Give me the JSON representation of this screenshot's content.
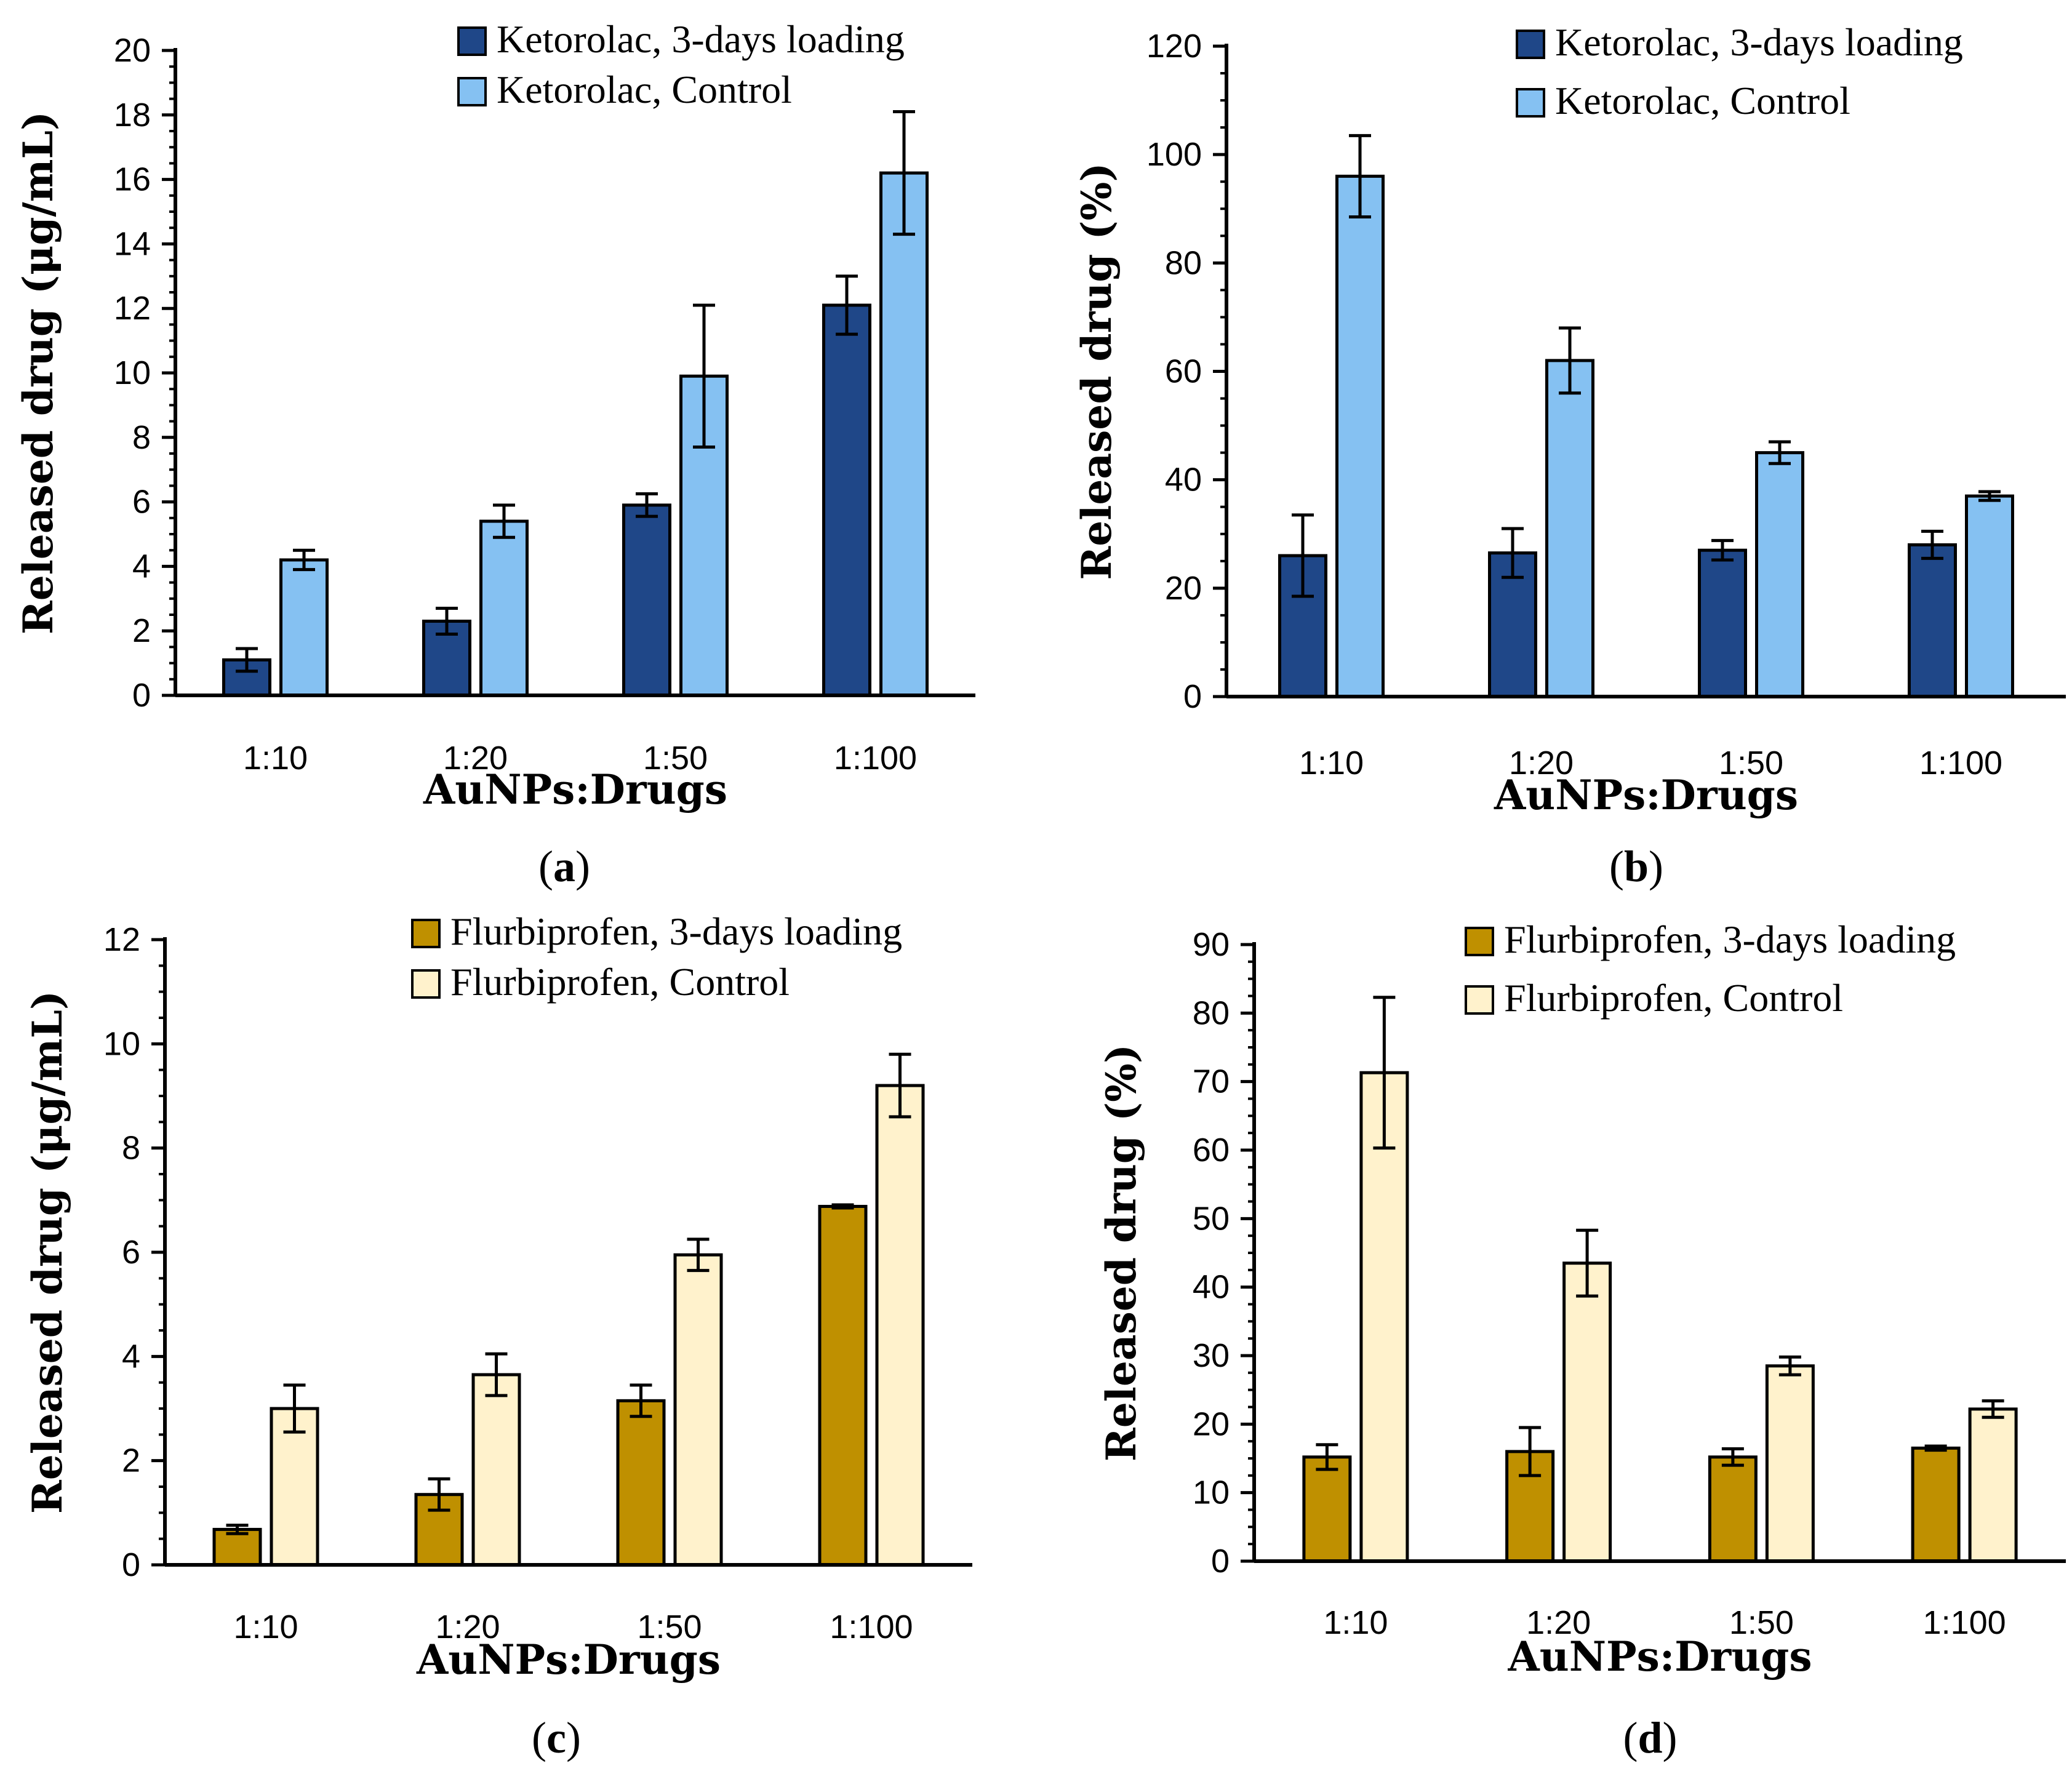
{
  "chart_data": [
    {
      "panel": "a",
      "type": "bar",
      "title": "",
      "xlabel": "AuNPs:Drugs",
      "ylabel": "Released drug (μg/mL)",
      "categories": [
        "1:10",
        "1:20",
        "1:50",
        "1:100"
      ],
      "ylim": [
        0,
        20
      ],
      "yticks": [
        0,
        2,
        4,
        6,
        8,
        10,
        12,
        14,
        16,
        18,
        20
      ],
      "series": [
        {
          "name": "Ketorolac, 3-days loading",
          "values": [
            1.1,
            2.3,
            5.9,
            12.1
          ],
          "errors": [
            0.35,
            0.4,
            0.35,
            0.9
          ],
          "color": "#1f4788"
        },
        {
          "name": "Ketorolac, Control",
          "values": [
            4.2,
            5.4,
            9.9,
            16.2
          ],
          "errors": [
            0.3,
            0.5,
            2.2,
            1.9
          ],
          "color": "#85c1f2"
        }
      ],
      "grid": false,
      "legend": "top-right"
    },
    {
      "panel": "b",
      "type": "bar",
      "title": "",
      "xlabel": "AuNPs:Drugs",
      "ylabel": "Released drug (%)",
      "categories": [
        "1:10",
        "1:20",
        "1:50",
        "1:100"
      ],
      "ylim": [
        0,
        120
      ],
      "yticks": [
        0,
        20,
        40,
        60,
        80,
        100,
        120
      ],
      "series": [
        {
          "name": "Ketorolac, 3-days loading",
          "values": [
            26,
            26.5,
            27,
            28
          ],
          "errors": [
            7.5,
            4.5,
            1.8,
            2.5
          ],
          "color": "#1f4788"
        },
        {
          "name": "Ketorolac, Control",
          "values": [
            96,
            62,
            45,
            37
          ],
          "errors": [
            7.5,
            6,
            2,
            0.8
          ],
          "color": "#85c1f2"
        }
      ],
      "grid": false,
      "legend": "top-right"
    },
    {
      "panel": "c",
      "type": "bar",
      "title": "",
      "xlabel": "AuNPs:Drugs",
      "ylabel": "Released drug (μg/mL)",
      "categories": [
        "1:10",
        "1:20",
        "1:50",
        "1:100"
      ],
      "ylim": [
        0,
        12
      ],
      "yticks": [
        0,
        2,
        4,
        6,
        8,
        10,
        12
      ],
      "series": [
        {
          "name": "Flurbiprofen, 3-days loading",
          "values": [
            0.68,
            1.35,
            3.15,
            6.88
          ],
          "errors": [
            0.08,
            0.3,
            0.3,
            0.03
          ],
          "color": "#bf9000"
        },
        {
          "name": "Flurbiprofen, Control",
          "values": [
            3.0,
            3.65,
            5.95,
            9.2
          ],
          "errors": [
            0.45,
            0.4,
            0.3,
            0.6
          ],
          "color": "#fff2cc"
        }
      ],
      "grid": false,
      "legend": "top-right"
    },
    {
      "panel": "d",
      "type": "bar",
      "title": "",
      "xlabel": "AuNPs:Drugs",
      "ylabel": "Released drug (%)",
      "categories": [
        "1:10",
        "1:20",
        "1:50",
        "1:100"
      ],
      "ylim": [
        0,
        90
      ],
      "yticks": [
        0,
        10,
        20,
        30,
        40,
        50,
        60,
        70,
        80,
        90
      ],
      "series": [
        {
          "name": "Flurbiprofen, 3-days loading",
          "values": [
            15.2,
            16,
            15.2,
            16.5
          ],
          "errors": [
            1.8,
            3.5,
            1.2,
            0.3
          ],
          "color": "#bf9000"
        },
        {
          "name": "Flurbiprofen, Control",
          "values": [
            71.3,
            43.5,
            28.5,
            22.2
          ],
          "errors": [
            11,
            4.8,
            1.3,
            1.2
          ],
          "color": "#fff2cc"
        }
      ],
      "grid": false,
      "legend": "top-right"
    }
  ],
  "panel_labels": [
    "a",
    "b",
    "c",
    "d"
  ]
}
